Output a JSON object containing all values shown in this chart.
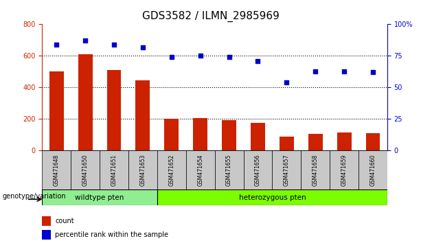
{
  "title": "GDS3582 / ILMN_2985969",
  "categories": [
    "GSM471648",
    "GSM471650",
    "GSM471651",
    "GSM471653",
    "GSM471652",
    "GSM471654",
    "GSM471655",
    "GSM471656",
    "GSM471657",
    "GSM471658",
    "GSM471659",
    "GSM471660"
  ],
  "bar_values": [
    500,
    610,
    510,
    445,
    200,
    205,
    195,
    175,
    90,
    105,
    115,
    110
  ],
  "scatter_values": [
    84,
    87,
    84,
    82,
    74,
    75,
    74,
    71,
    54,
    63,
    63,
    62
  ],
  "bar_color": "#cc2200",
  "scatter_color": "#0000cc",
  "ylim_left": [
    0,
    800
  ],
  "ylim_right": [
    0,
    100
  ],
  "yticks_left": [
    0,
    200,
    400,
    600,
    800
  ],
  "yticks_right": [
    0,
    25,
    50,
    75,
    100
  ],
  "yticklabels_right": [
    "0",
    "25",
    "50",
    "75",
    "100%"
  ],
  "grid_lines": [
    200,
    400,
    600
  ],
  "wildtype_count": 4,
  "heterozygous_count": 8,
  "wildtype_label": "wildtype pten",
  "heterozygous_label": "heterozygous pten",
  "genotype_label": "genotype/variation",
  "legend_bar_label": "count",
  "legend_scatter_label": "percentile rank within the sample",
  "wildtype_color": "#90ee90",
  "heterozygous_color": "#7cfc00",
  "group_bar_color": "#c8c8c8",
  "title_fontsize": 11,
  "tick_fontsize": 7,
  "label_fontsize": 8
}
